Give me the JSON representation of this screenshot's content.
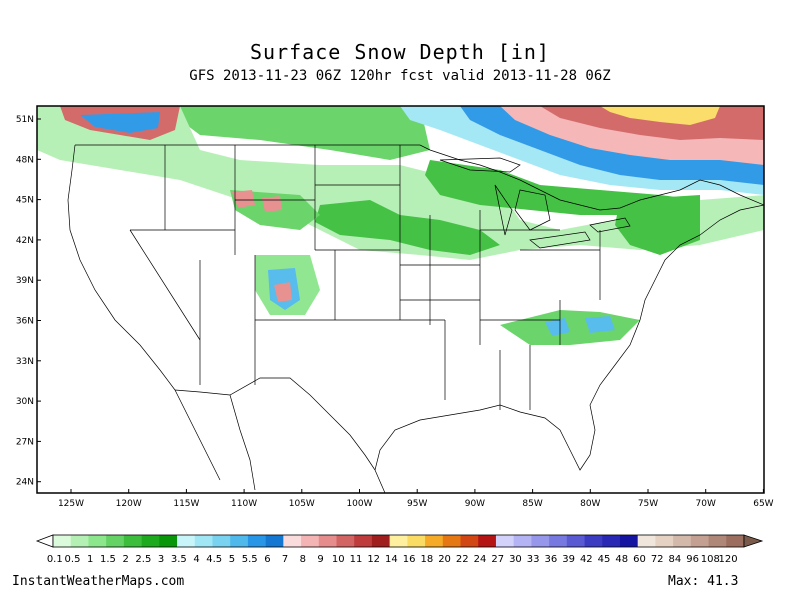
{
  "title": "Surface Snow Depth [in]",
  "subtitle": "GFS 2013-11-23 06Z 120hr fcst valid 2013-11-28 06Z",
  "credit": "InstantWeatherMaps.com",
  "max_text": "Max:  41.3",
  "y_ticks": [
    "51N",
    "48N",
    "45N",
    "42N",
    "39N",
    "36N",
    "33N",
    "30N",
    "27N",
    "24N"
  ],
  "x_ticks": [
    "125W",
    "120W",
    "115W",
    "110W",
    "105W",
    "100W",
    "95W",
    "90W",
    "85W",
    "80W",
    "75W",
    "70W",
    "65W"
  ],
  "legend": {
    "labels": [
      "0.1",
      "0.5",
      "1",
      "1.5",
      "2",
      "2.5",
      "3",
      "3.5",
      "4",
      "4.5",
      "5",
      "5.5",
      "6",
      "7",
      "8",
      "9",
      "10",
      "11",
      "12",
      "14",
      "16",
      "18",
      "20",
      "22",
      "24",
      "27",
      "30",
      "33",
      "36",
      "39",
      "42",
      "45",
      "48",
      "60",
      "72",
      "84",
      "96",
      "108",
      "120"
    ],
    "colors": [
      "#dcfadc",
      "#b4f0b4",
      "#8ce68c",
      "#64d264",
      "#3cbe3c",
      "#1eaa1e",
      "#0a960a",
      "#c8f5fa",
      "#a0e6f5",
      "#78d2f0",
      "#50b9eb",
      "#2896e6",
      "#1478d2",
      "#fadcdc",
      "#f5b4b4",
      "#e68c8c",
      "#d26464",
      "#be3c3c",
      "#a01e1e",
      "#fff0a0",
      "#fadc64",
      "#f5aa28",
      "#e67814",
      "#d24614",
      "#b41414",
      "#d2d2fa",
      "#b4b4f5",
      "#9696eb",
      "#7878e1",
      "#5a5ad2",
      "#3c3cc3",
      "#2828b4",
      "#1414a0",
      "#f0e6dc",
      "#e6d2c3",
      "#d2b9aa",
      "#c3a091",
      "#af8778",
      "#9b6e5f"
    ]
  },
  "colors": {
    "frame": "#000000",
    "land": "#ffffff"
  }
}
